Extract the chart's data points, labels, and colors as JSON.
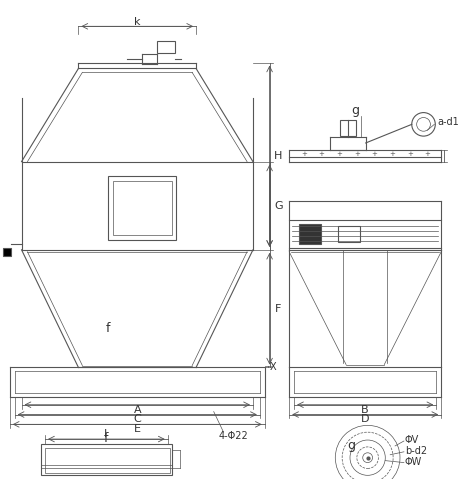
{
  "bg_color": "#ffffff",
  "line_color": "#555555",
  "line_width": 0.8,
  "thin_line": 0.5,
  "thick_line": 1.2,
  "labels": {
    "k": "k",
    "H": "H",
    "G": "G",
    "F": "F",
    "X": "X",
    "A": "A",
    "C": "C",
    "E": "E",
    "f_label": "f",
    "I_label": "I",
    "B": "B",
    "D": "D",
    "g_top": "g",
    "g_bottom": "g",
    "a_d1": "a-d1",
    "phi22": "4-Φ22",
    "phi_v": "ΦV",
    "b_d2": "b-d2",
    "phi_w": "ΦW",
    "f_bottom": "f"
  }
}
